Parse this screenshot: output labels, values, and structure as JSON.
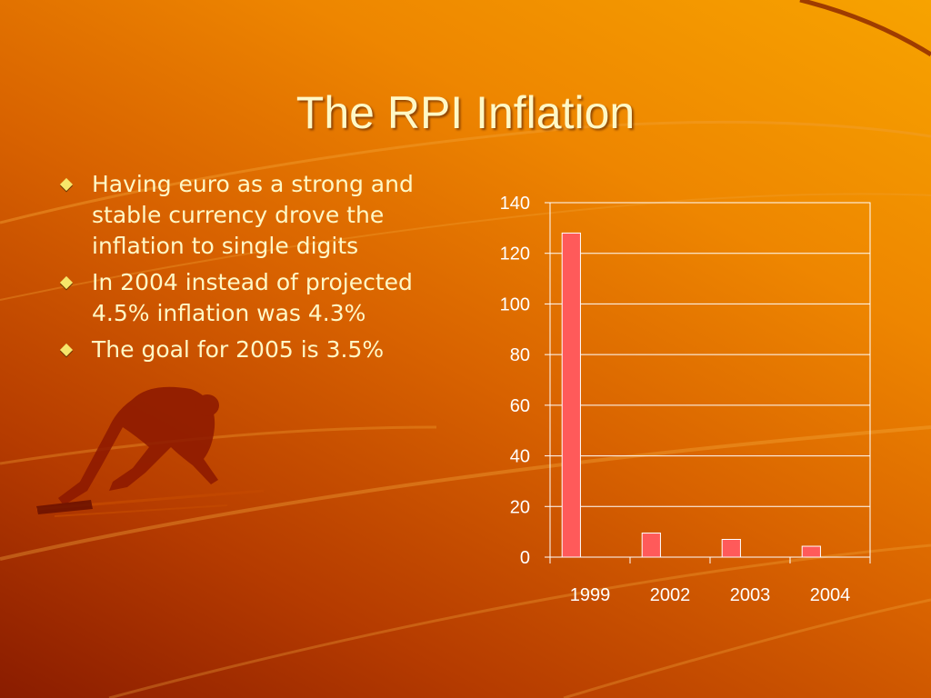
{
  "slide": {
    "title": "The RPI Inflation",
    "bullets": [
      "Having euro as a strong and stable currency drove the inflation to single digits",
      "In 2004 instead of projected 4.5% inflation was 4.3%",
      "The goal for 2005 is 3.5%"
    ],
    "colors": {
      "title_text": "#fff8c6",
      "bullet_marker": "#f6e66a",
      "background_start": "#8a1c00",
      "background_end": "#f7a300",
      "bar_fill": "#ff5a5a",
      "gridline": "#ffffff"
    }
  },
  "chart_data": {
    "type": "bar",
    "categories": [
      "1999",
      "2002",
      "2003",
      "2004"
    ],
    "values": [
      128,
      9.5,
      7,
      4.3
    ],
    "title": "",
    "xlabel": "",
    "ylabel": "",
    "ylim": [
      0,
      140
    ],
    "yticks": [
      0,
      20,
      40,
      60,
      80,
      100,
      120,
      140
    ],
    "grid": true,
    "legend": "none"
  }
}
